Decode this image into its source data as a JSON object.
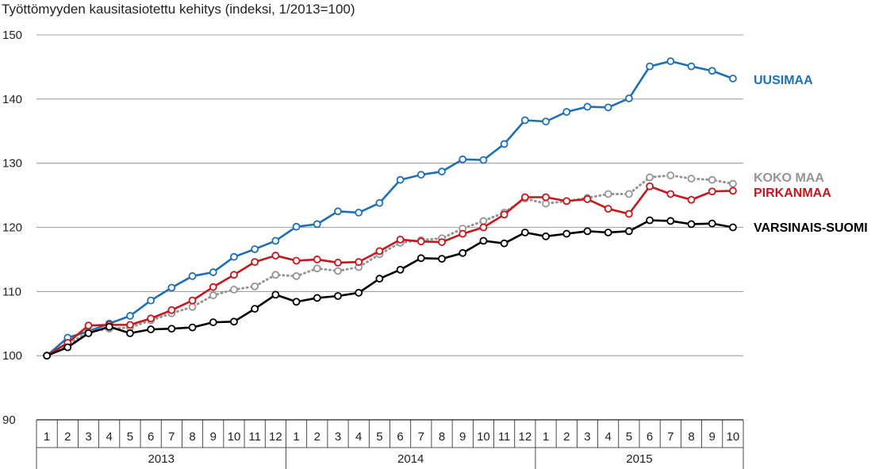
{
  "chart_data": {
    "type": "line",
    "title": "Työttömyyden kausitasiotettu kehitys (indeksi, 1/2013=100)",
    "ylim": [
      90,
      150
    ],
    "yticks": [
      90,
      100,
      110,
      120,
      130,
      140,
      150
    ],
    "grid": true,
    "x": [
      "1",
      "2",
      "3",
      "4",
      "5",
      "6",
      "7",
      "8",
      "9",
      "10",
      "11",
      "12",
      "1",
      "2",
      "3",
      "4",
      "5",
      "6",
      "7",
      "8",
      "9",
      "10",
      "11",
      "12",
      "1",
      "2",
      "3",
      "4",
      "5",
      "6",
      "7",
      "8",
      "9",
      "10"
    ],
    "years": [
      {
        "label": "2013",
        "start": 0,
        "end": 11
      },
      {
        "label": "2014",
        "start": 12,
        "end": 23
      },
      {
        "label": "2015",
        "start": 24,
        "end": 33
      }
    ],
    "series": [
      {
        "name": "UUSIMAA",
        "color": "#1f6fb4",
        "dashed": false,
        "values": [
          100,
          102.8,
          103.8,
          105.0,
          106.2,
          108.6,
          110.6,
          112.4,
          113.0,
          115.4,
          116.6,
          117.9,
          120.1,
          120.5,
          122.5,
          122.3,
          123.8,
          127.4,
          128.2,
          128.7,
          130.6,
          130.5,
          133.0,
          136.7,
          136.5,
          138.0,
          138.8,
          138.7,
          140.1,
          145.1,
          145.9,
          145.1,
          144.4,
          143.2
        ]
      },
      {
        "name": "KOKO MAA",
        "color": "#939598",
        "dashed": true,
        "values": [
          100,
          101.8,
          103.7,
          104.2,
          104.4,
          105.5,
          106.6,
          107.6,
          109.4,
          110.3,
          110.8,
          112.6,
          112.4,
          113.6,
          113.2,
          113.8,
          115.8,
          117.6,
          118.0,
          118.3,
          119.8,
          121.0,
          122.3,
          124.5,
          123.7,
          124.1,
          124.6,
          125.2,
          125.2,
          127.8,
          128.1,
          127.6,
          127.4,
          126.8
        ]
      },
      {
        "name": "PIRKANMAA",
        "color": "#c8161d",
        "dashed": false,
        "values": [
          100,
          102.0,
          104.7,
          104.8,
          104.8,
          105.8,
          107.1,
          108.6,
          110.7,
          112.6,
          114.6,
          115.6,
          114.8,
          115.0,
          114.5,
          114.6,
          116.3,
          118.1,
          117.8,
          117.7,
          119.0,
          120.0,
          122.0,
          124.7,
          124.7,
          124.1,
          124.4,
          122.9,
          122.1,
          126.4,
          125.2,
          124.3,
          125.6,
          125.7
        ]
      },
      {
        "name": "VARSINAIS-SUOMI",
        "color": "#000000",
        "dashed": false,
        "values": [
          100,
          101.3,
          103.5,
          104.5,
          103.5,
          104.1,
          104.2,
          104.4,
          105.2,
          105.3,
          107.3,
          109.5,
          108.4,
          109.0,
          109.3,
          109.8,
          112.0,
          113.4,
          115.2,
          115.1,
          116.0,
          117.9,
          117.5,
          119.2,
          118.6,
          119.0,
          119.4,
          119.2,
          119.4,
          121.1,
          121.0,
          120.5,
          120.6,
          120.0
        ]
      }
    ],
    "direct_labels": [
      {
        "text": "UUSIMAA",
        "color": "#1f6fb4"
      },
      {
        "text": "KOKO MAA",
        "color": "#939598"
      },
      {
        "text": "PIRKANMAA",
        "color": "#c8161d"
      },
      {
        "text": "VARSINAIS-SUOMI",
        "color": "#000000"
      }
    ]
  }
}
